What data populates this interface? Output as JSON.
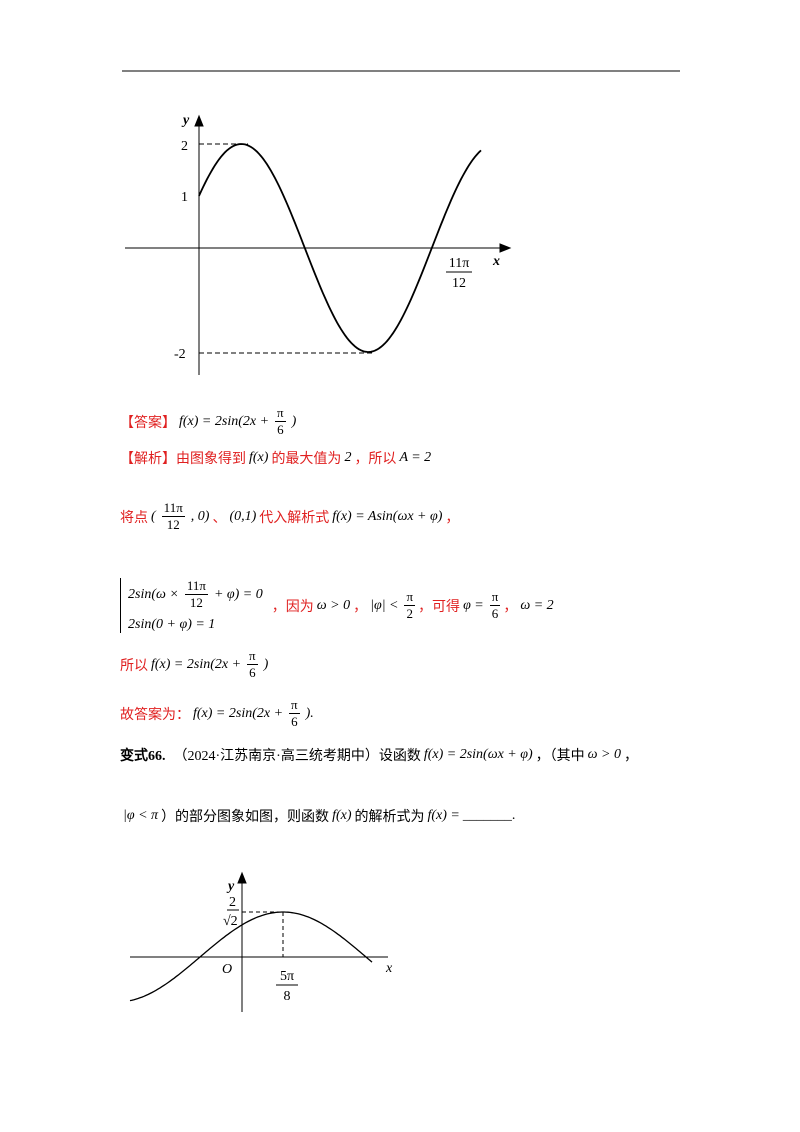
{
  "fig1": {
    "y_label": "y",
    "x_label": "x",
    "y_ticks": [
      "2",
      "1",
      "-2"
    ],
    "x_tick": {
      "num": "11π",
      "den": "12"
    }
  },
  "lines": [
    [
      {
        "zh": "【答案】"
      },
      {
        "m": "f(x) = 2sin(2x +"
      },
      {
        "frac": [
          "π",
          "6"
        ]
      },
      {
        "m": ")"
      }
    ],
    [
      {
        "zh": "【解析】由图象得到"
      },
      {
        "m": "f(x)"
      },
      {
        "zh": "的最大值为"
      },
      {
        "m": "2"
      },
      {
        "zh": "，所以"
      },
      {
        "m": "A = 2"
      }
    ],
    [
      {
        "zh": "将点"
      },
      {
        "m": "("
      },
      {
        "frac": [
          "11π",
          "12"
        ]
      },
      {
        "m": ", 0)"
      },
      {
        "zh": "、"
      },
      {
        "m": "(0,1)"
      },
      {
        "zh": "代入解析式"
      },
      {
        "m": "f(x) = Asin(ωx + φ)"
      },
      {
        "zh": "，"
      }
    ],
    [
      {
        "system": [
          [
            {
              "m": "2sin(ω ×"
            },
            {
              "frac": [
                "11π",
                "12"
              ]
            },
            {
              "m": "+ φ) = 0"
            }
          ],
          [
            {
              "m": "2sin(0 + φ) = 1"
            }
          ]
        ]
      },
      {
        "zh": "，因为"
      },
      {
        "m": "ω > 0"
      },
      {
        "zh": "，"
      },
      {
        "m": "|φ| <"
      },
      {
        "frac": [
          "π",
          "2"
        ]
      },
      {
        "zh": "，可得"
      },
      {
        "m": "φ ="
      },
      {
        "frac": [
          "π",
          "6"
        ]
      },
      {
        "zh": "，"
      },
      {
        "m": "ω = 2"
      }
    ],
    [
      {
        "zh": "所以"
      },
      {
        "m": "f(x) = 2sin(2x +"
      },
      {
        "frac": [
          "π",
          "6"
        ]
      },
      {
        "m": ")"
      }
    ],
    [
      {
        "zh": "故答案为："
      },
      {
        "m": "f(x) = 2sin(2x +"
      },
      {
        "frac": [
          "π",
          "6"
        ]
      },
      {
        "m": ")."
      }
    ],
    [
      {
        "b": "变式66."
      },
      {
        "k": "（2024·江苏南京·高三统考期中）设函数"
      },
      {
        "m": "f(x) = 2sin(ωx + φ)"
      },
      {
        "k": "，（其中"
      },
      {
        "m": "ω > 0"
      },
      {
        "k": "，"
      }
    ],
    [
      {
        "m": "|φ < π"
      },
      {
        "k": "）的部分图象如图，则函数"
      },
      {
        "m": "f(x)"
      },
      {
        "k": "的解析式为"
      },
      {
        "m": "f(x) ="
      },
      {
        "k": "_______."
      }
    ]
  ],
  "fig2": {
    "y_label": "y",
    "x_label": "x",
    "origin": "O",
    "y_top": "2",
    "y_root": "√2",
    "x_tick": {
      "num": "5π",
      "den": "8"
    }
  }
}
